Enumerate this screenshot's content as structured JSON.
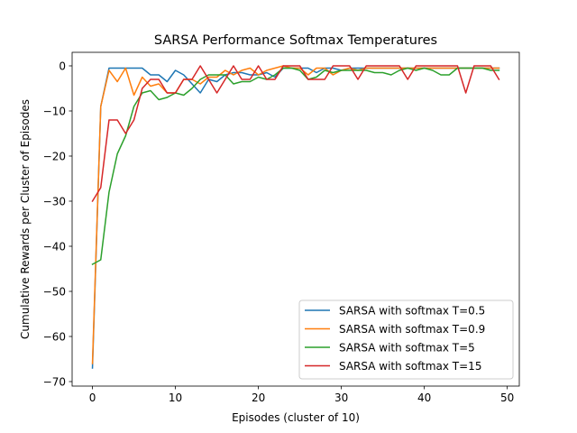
{
  "chart_data": {
    "type": "line",
    "title": "SARSA Performance Softmax Temperatures",
    "xlabel": "Episodes (cluster of 10)",
    "ylabel": "Cumulative Rewards per Cluster of Episodes",
    "xlim": [
      -2.45,
      51.45
    ],
    "ylim": [
      -71,
      3
    ],
    "xticks": [
      0,
      10,
      20,
      30,
      40,
      50
    ],
    "yticks": [
      -70,
      -60,
      -50,
      -40,
      -30,
      -20,
      -10,
      0
    ],
    "grid": false,
    "legend_position": "lower-right",
    "x": [
      0,
      1,
      2,
      3,
      4,
      5,
      6,
      7,
      8,
      9,
      10,
      11,
      12,
      13,
      14,
      15,
      16,
      17,
      18,
      19,
      20,
      21,
      22,
      23,
      24,
      25,
      26,
      27,
      28,
      29,
      30,
      31,
      32,
      33,
      34,
      35,
      36,
      37,
      38,
      39,
      40,
      41,
      42,
      43,
      44,
      45,
      46,
      47,
      48,
      49
    ],
    "series": [
      {
        "name": "SARSA with softmax T=0.5",
        "color": "#1f77b4",
        "values": [
          -67,
          -9,
          -0.5,
          -0.5,
          -0.5,
          -0.5,
          -0.5,
          -2,
          -2,
          -3.5,
          -1,
          -2,
          -4,
          -6,
          -3,
          -3.5,
          -2,
          -1.5,
          -1.5,
          -2,
          -2,
          -1.5,
          -2.5,
          -0.5,
          -0.5,
          -0.5,
          -0.5,
          -1.5,
          -0.5,
          -0.5,
          -1,
          -0.5,
          -0.5,
          -0.5,
          -0.5,
          -0.5,
          -0.5,
          -0.5,
          -0.5,
          -0.5,
          -0.5,
          -0.5,
          -0.5,
          -0.5,
          -0.5,
          -0.5,
          -0.5,
          -0.5,
          -0.5,
          -0.5
        ]
      },
      {
        "name": "SARSA with softmax T=0.9",
        "color": "#ff7f0e",
        "values": [
          -66,
          -9,
          -1,
          -3.5,
          -0.5,
          -6.5,
          -2.5,
          -4.5,
          -4,
          -6,
          -6,
          -3,
          -3,
          -4,
          -2.5,
          -2.5,
          -1,
          -2,
          -1,
          -0.5,
          -2,
          -1,
          -0.5,
          0,
          -0.5,
          -0.5,
          -2,
          -0.5,
          -0.5,
          -2,
          -1,
          -0.5,
          -1,
          -0.5,
          -0.5,
          -0.5,
          -0.5,
          -0.5,
          -0.5,
          -0.5,
          -0.5,
          -0.5,
          -0.5,
          -0.5,
          -0.5,
          -0.5,
          -0.5,
          -0.5,
          -0.5,
          -0.5
        ]
      },
      {
        "name": "SARSA with softmax T=5",
        "color": "#2ca02c",
        "values": [
          -44,
          -43,
          -28,
          -19.5,
          -15.5,
          -9,
          -6,
          -5.5,
          -7.5,
          -7,
          -6,
          -6.5,
          -5,
          -3,
          -2,
          -2,
          -2,
          -4,
          -3.5,
          -3.5,
          -2.5,
          -3,
          -2,
          -0.5,
          -0.5,
          -1,
          -3,
          -2.5,
          -1,
          -1.5,
          -1,
          -1,
          -1,
          -1,
          -1.5,
          -1.5,
          -2,
          -1,
          -0.5,
          -1,
          -0.5,
          -1,
          -2,
          -2,
          -0.5,
          -0.5,
          -0.5,
          -0.5,
          -1,
          -1
        ]
      },
      {
        "name": "SARSA with softmax T=15",
        "color": "#d62728",
        "values": [
          -30,
          -27,
          -12,
          -12,
          -15,
          -12,
          -5,
          -3,
          -3,
          -6,
          -6,
          -3,
          -3,
          0,
          -3,
          -6,
          -3,
          0,
          -3,
          -3,
          0,
          -3,
          -3,
          0,
          0,
          0,
          -3,
          -3,
          -3,
          0,
          0,
          0,
          -3,
          0,
          0,
          0,
          0,
          0,
          -3,
          0,
          0,
          0,
          0,
          0,
          0,
          -6,
          0,
          0,
          0,
          -3
        ]
      }
    ]
  }
}
